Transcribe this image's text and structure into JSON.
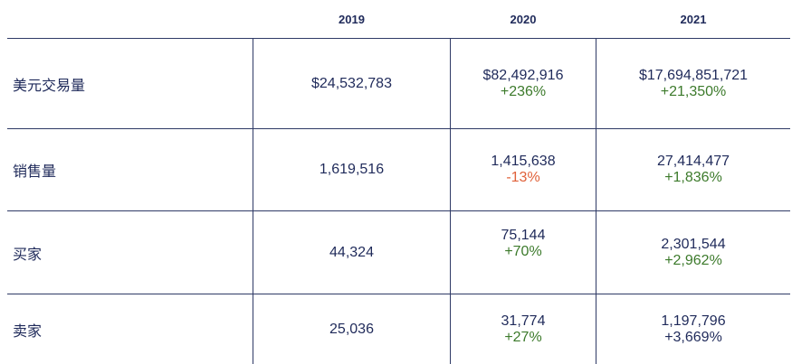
{
  "columns": [
    "2019",
    "2020",
    "2021"
  ],
  "rows": [
    {
      "label": "美元交易量",
      "y2019": "$24,532,783",
      "y2020": "$82,492,916",
      "y2020_change": "+236%",
      "y2021": "$17,694,851,721",
      "y2021_change": "+21,350%"
    },
    {
      "label": "销售量",
      "y2019": "1,619,516",
      "y2020": "1,415,638",
      "y2020_change": "-13%",
      "y2021": "27,414,477",
      "y2021_change": "+1,836%"
    },
    {
      "label": "买家",
      "y2019": "44,324",
      "y2020": "75,144",
      "y2020_change": "+70%",
      "y2021": "2,301,544",
      "y2021_change": "+2,962%"
    },
    {
      "label": "卖家",
      "y2019": "25,036",
      "y2020": "31,774",
      "y2020_change": "+27%",
      "y2021": "1,197,796",
      "y2021_change": "+3,669%"
    }
  ],
  "colors": {
    "text": "#1f2a5a",
    "positive": "#3c7a2b",
    "negative": "#e0613a",
    "rule": "#2f3a66"
  }
}
